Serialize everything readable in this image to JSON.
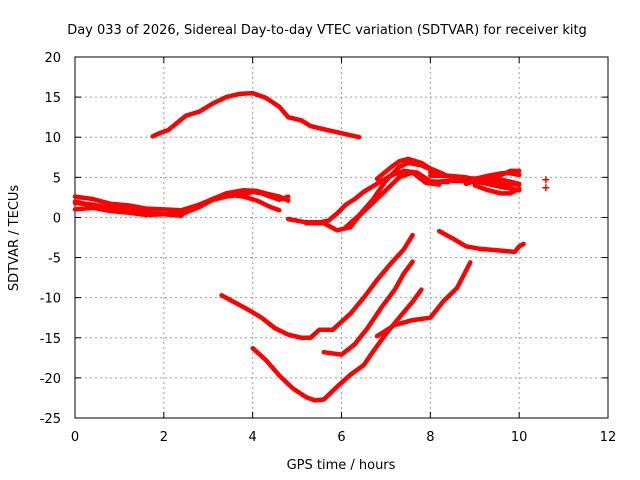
{
  "chart_data": {
    "type": "line",
    "title": "Day 033 of 2026, Sidereal Day-to-day VTEC variation (SDTVAR) for receiver kitg",
    "xlabel": "GPS time / hours",
    "ylabel": "SDTVAR / TECUs",
    "xlim": [
      0,
      12
    ],
    "ylim": [
      -25,
      20
    ],
    "xticks": [
      0,
      2,
      4,
      6,
      8,
      10,
      12
    ],
    "yticks": [
      20,
      15,
      10,
      5,
      0,
      -5,
      -10,
      -15,
      -20,
      -25
    ],
    "grid": true,
    "color": "#ff0000",
    "series": [
      {
        "name": "arc-upper",
        "points": [
          [
            1.75,
            10.1
          ],
          [
            1.9,
            10.5
          ],
          [
            2.1,
            10.9
          ],
          [
            2.3,
            11.8
          ],
          [
            2.5,
            12.7
          ],
          [
            2.8,
            13.2
          ],
          [
            3.1,
            14.2
          ],
          [
            3.4,
            15.0
          ],
          [
            3.7,
            15.4
          ],
          [
            4.0,
            15.5
          ],
          [
            4.3,
            14.9
          ],
          [
            4.6,
            13.8
          ],
          [
            4.8,
            12.5
          ],
          [
            5.1,
            12.1
          ],
          [
            5.3,
            11.4
          ],
          [
            5.6,
            11.0
          ],
          [
            6.0,
            10.5
          ],
          [
            6.4,
            10.0
          ]
        ]
      },
      {
        "name": "band-a",
        "points": [
          [
            0,
            2.6
          ],
          [
            0.4,
            2.3
          ],
          [
            0.8,
            1.7
          ],
          [
            1.2,
            1.5
          ],
          [
            1.6,
            1.1
          ],
          [
            2.0,
            1.0
          ],
          [
            2.4,
            0.9
          ],
          [
            2.8,
            1.6
          ],
          [
            3.1,
            2.3
          ],
          [
            3.4,
            3.0
          ],
          [
            3.8,
            3.4
          ],
          [
            4.1,
            3.3
          ],
          [
            4.3,
            3.0
          ],
          [
            4.6,
            2.6
          ],
          [
            4.8,
            2.1
          ]
        ]
      },
      {
        "name": "band-b",
        "points": [
          [
            0,
            1.8
          ],
          [
            0.4,
            1.6
          ],
          [
            0.8,
            1.2
          ],
          [
            1.2,
            1.0
          ],
          [
            1.6,
            0.6
          ],
          [
            2.0,
            0.4
          ],
          [
            2.4,
            0.4
          ],
          [
            2.8,
            1.3
          ],
          [
            3.1,
            2.2
          ],
          [
            3.4,
            2.6
          ],
          [
            3.8,
            2.9
          ],
          [
            4.0,
            3.2
          ],
          [
            4.2,
            3.0
          ],
          [
            4.6,
            2.2
          ],
          [
            4.8,
            2.6
          ]
        ]
      },
      {
        "name": "band-c",
        "points": [
          [
            0,
            1.0
          ],
          [
            0.4,
            1.2
          ],
          [
            0.8,
            0.8
          ],
          [
            1.2,
            0.6
          ],
          [
            1.6,
            0.3
          ],
          [
            2.0,
            0.4
          ],
          [
            2.4,
            0.6
          ],
          [
            2.8,
            1.4
          ],
          [
            3.1,
            2.3
          ],
          [
            3.4,
            2.9
          ],
          [
            3.8,
            2.6
          ],
          [
            4.1,
            2.1
          ],
          [
            4.4,
            1.3
          ],
          [
            4.6,
            0.9
          ]
        ]
      },
      {
        "name": "band-d",
        "points": [
          [
            0,
            2.0
          ],
          [
            0.4,
            1.5
          ],
          [
            0.8,
            1.0
          ],
          [
            1.2,
            0.9
          ],
          [
            1.6,
            0.6
          ],
          [
            2.0,
            0.4
          ],
          [
            2.4,
            0.2
          ]
        ]
      },
      {
        "name": "dip-rise-1",
        "points": [
          [
            4.8,
            -0.2
          ],
          [
            5.2,
            -0.6
          ],
          [
            5.5,
            -0.6
          ],
          [
            5.7,
            -0.4
          ],
          [
            5.9,
            0.5
          ],
          [
            6.1,
            1.6
          ],
          [
            6.3,
            2.3
          ],
          [
            6.5,
            3.2
          ],
          [
            6.8,
            4.2
          ],
          [
            7.1,
            5.2
          ],
          [
            7.4,
            5.8
          ],
          [
            7.7,
            5.6
          ],
          [
            8.0,
            4.5
          ],
          [
            8.4,
            4.4
          ]
        ]
      },
      {
        "name": "dip-rise-2",
        "points": [
          [
            5.2,
            -0.7
          ],
          [
            5.6,
            -0.7
          ],
          [
            5.9,
            -1.6
          ],
          [
            6.2,
            -1.2
          ],
          [
            6.4,
            0.2
          ],
          [
            6.7,
            1.8
          ],
          [
            7.0,
            3.4
          ],
          [
            7.3,
            5.0
          ],
          [
            7.6,
            5.6
          ],
          [
            7.9,
            4.3
          ],
          [
            8.2,
            4.1
          ]
        ]
      },
      {
        "name": "dip-rise-3",
        "points": [
          [
            6.1,
            -1.2
          ],
          [
            6.4,
            0.3
          ],
          [
            6.7,
            2.2
          ],
          [
            7.0,
            4.6
          ],
          [
            7.3,
            6.3
          ],
          [
            7.5,
            6.8
          ],
          [
            7.8,
            6.5
          ],
          [
            8.0,
            6.0
          ]
        ]
      },
      {
        "name": "peak-b",
        "points": [
          [
            6.8,
            4.8
          ],
          [
            7.1,
            6.2
          ],
          [
            7.3,
            7.0
          ],
          [
            7.5,
            7.3
          ],
          [
            7.8,
            6.8
          ],
          [
            8.0,
            6.1
          ],
          [
            8.3,
            5.4
          ]
        ]
      },
      {
        "name": "tail-1",
        "points": [
          [
            8.0,
            5.2
          ],
          [
            8.4,
            5.2
          ],
          [
            8.8,
            5.0
          ],
          [
            9.2,
            4.4
          ],
          [
            9.6,
            4.2
          ],
          [
            10.0,
            4.1
          ]
        ]
      },
      {
        "name": "tail-2",
        "points": [
          [
            8.0,
            4.3
          ],
          [
            8.4,
            4.6
          ],
          [
            8.8,
            4.5
          ],
          [
            9.2,
            4.3
          ],
          [
            9.6,
            3.8
          ],
          [
            10.0,
            3.4
          ]
        ]
      },
      {
        "name": "tail-3",
        "points": [
          [
            8.0,
            5.6
          ],
          [
            8.4,
            5.2
          ],
          [
            8.8,
            4.9
          ],
          [
            9.2,
            4.8
          ],
          [
            9.6,
            4.7
          ],
          [
            10.0,
            4.2
          ]
        ]
      },
      {
        "name": "tail-4",
        "points": [
          [
            9.0,
            4.0
          ],
          [
            9.3,
            3.4
          ],
          [
            9.6,
            3.0
          ],
          [
            9.8,
            3.0
          ],
          [
            10.0,
            3.6
          ]
        ]
      },
      {
        "name": "tail-5",
        "points": [
          [
            8.8,
            4.2
          ],
          [
            9.2,
            4.9
          ],
          [
            9.6,
            5.3
          ],
          [
            9.8,
            5.8
          ],
          [
            10.0,
            5.8
          ]
        ]
      },
      {
        "name": "tail-6",
        "points": [
          [
            9.0,
            4.8
          ],
          [
            9.3,
            5.2
          ],
          [
            9.6,
            5.5
          ],
          [
            9.8,
            5.5
          ],
          [
            10.0,
            5.3
          ]
        ]
      },
      {
        "name": "late-dip",
        "points": [
          [
            8.2,
            -1.7
          ],
          [
            8.5,
            -2.6
          ],
          [
            8.8,
            -3.6
          ],
          [
            9.1,
            -3.9
          ],
          [
            9.5,
            -4.1
          ],
          [
            9.9,
            -4.3
          ],
          [
            10.0,
            -3.6
          ],
          [
            10.1,
            -3.3
          ]
        ]
      },
      {
        "name": "v-mid",
        "points": [
          [
            3.3,
            -9.7
          ],
          [
            3.6,
            -10.6
          ],
          [
            3.9,
            -11.5
          ],
          [
            4.2,
            -12.5
          ],
          [
            4.5,
            -13.8
          ],
          [
            4.8,
            -14.6
          ],
          [
            5.1,
            -15.0
          ],
          [
            5.3,
            -15.0
          ],
          [
            5.5,
            -14.0
          ],
          [
            5.8,
            -14.0
          ],
          [
            6.2,
            -12.0
          ],
          [
            6.5,
            -10.0
          ],
          [
            6.8,
            -7.8
          ],
          [
            7.1,
            -5.8
          ],
          [
            7.4,
            -4.0
          ],
          [
            7.6,
            -2.2
          ]
        ]
      },
      {
        "name": "v-low",
        "points": [
          [
            4.0,
            -16.3
          ],
          [
            4.3,
            -17.8
          ],
          [
            4.6,
            -19.7
          ],
          [
            4.9,
            -21.3
          ],
          [
            5.2,
            -22.4
          ],
          [
            5.4,
            -22.8
          ],
          [
            5.6,
            -22.7
          ],
          [
            5.9,
            -21.1
          ],
          [
            6.2,
            -19.6
          ],
          [
            6.5,
            -18.4
          ],
          [
            6.7,
            -16.8
          ],
          [
            7.0,
            -14.5
          ],
          [
            7.3,
            -12.5
          ],
          [
            7.6,
            -10.5
          ],
          [
            7.8,
            -9.0
          ]
        ]
      },
      {
        "name": "s-curve-a",
        "points": [
          [
            5.6,
            -16.8
          ],
          [
            6.0,
            -17.1
          ],
          [
            6.3,
            -15.8
          ],
          [
            6.6,
            -13.7
          ],
          [
            6.9,
            -11.2
          ],
          [
            7.2,
            -9.0
          ],
          [
            7.4,
            -7.0
          ],
          [
            7.6,
            -5.5
          ]
        ]
      },
      {
        "name": "s-curve-b",
        "points": [
          [
            6.8,
            -14.8
          ],
          [
            7.2,
            -13.4
          ],
          [
            7.6,
            -12.8
          ],
          [
            8.0,
            -12.5
          ],
          [
            8.3,
            -10.4
          ],
          [
            8.6,
            -8.8
          ],
          [
            8.9,
            -5.6
          ]
        ]
      }
    ],
    "isolated_markers": [
      [
        10.6,
        4.7
      ],
      [
        10.6,
        3.7
      ]
    ]
  }
}
